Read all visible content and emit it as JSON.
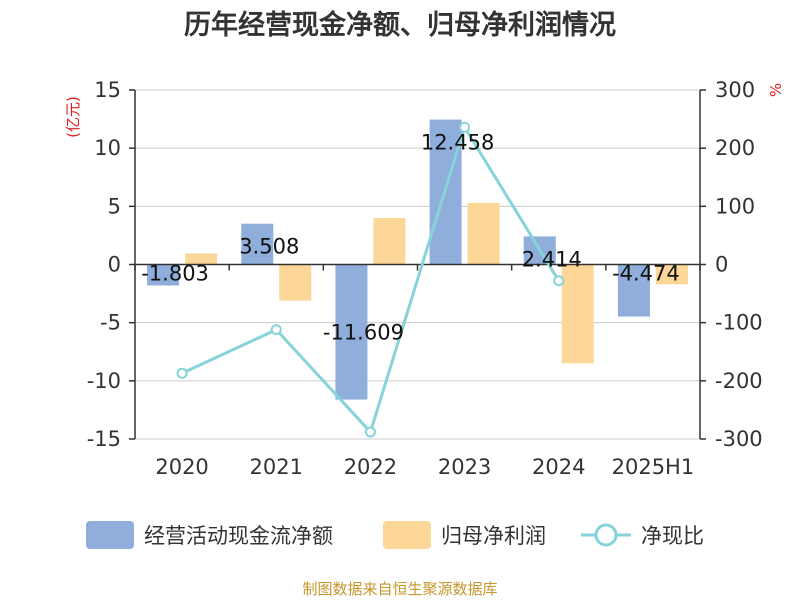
{
  "chart_data": {
    "type": "bar",
    "title": "历年经营现金净额、归母净利润情况",
    "categories": [
      "2020",
      "2021",
      "2022",
      "2023",
      "2024",
      "2025H1"
    ],
    "y_left": {
      "unit": "(亿元)",
      "ylim": [
        -15,
        15
      ],
      "ticks": [
        15,
        10,
        5,
        0,
        -5,
        -10,
        -15
      ]
    },
    "y_right": {
      "unit": "%",
      "ylim": [
        -300,
        300
      ],
      "ticks": [
        300,
        200,
        100,
        0,
        -100,
        -200,
        -300
      ]
    },
    "series": [
      {
        "name": "经营活动现金流净额",
        "type": "bar",
        "axis": "left",
        "color": "#8faedc",
        "values": [
          -1.803,
          3.508,
          -11.609,
          12.458,
          2.414,
          -4.474
        ],
        "labels": [
          "-1.803",
          "3.508",
          "-11.609",
          "12.458",
          "2.414",
          "-4.474"
        ]
      },
      {
        "name": "归母净利润",
        "type": "bar",
        "axis": "left",
        "color": "#fdd797",
        "values": [
          0.95,
          -3.1,
          4.0,
          5.3,
          -8.5,
          -1.7
        ]
      },
      {
        "name": "净现比",
        "type": "line",
        "axis": "right",
        "color": "#86d3da",
        "values": [
          -187,
          -112,
          -288,
          236,
          -28,
          null
        ]
      }
    ],
    "grid": true,
    "legend_position": "bottom"
  },
  "footer": {
    "source": "制图数据来自恒生聚源数据库"
  }
}
